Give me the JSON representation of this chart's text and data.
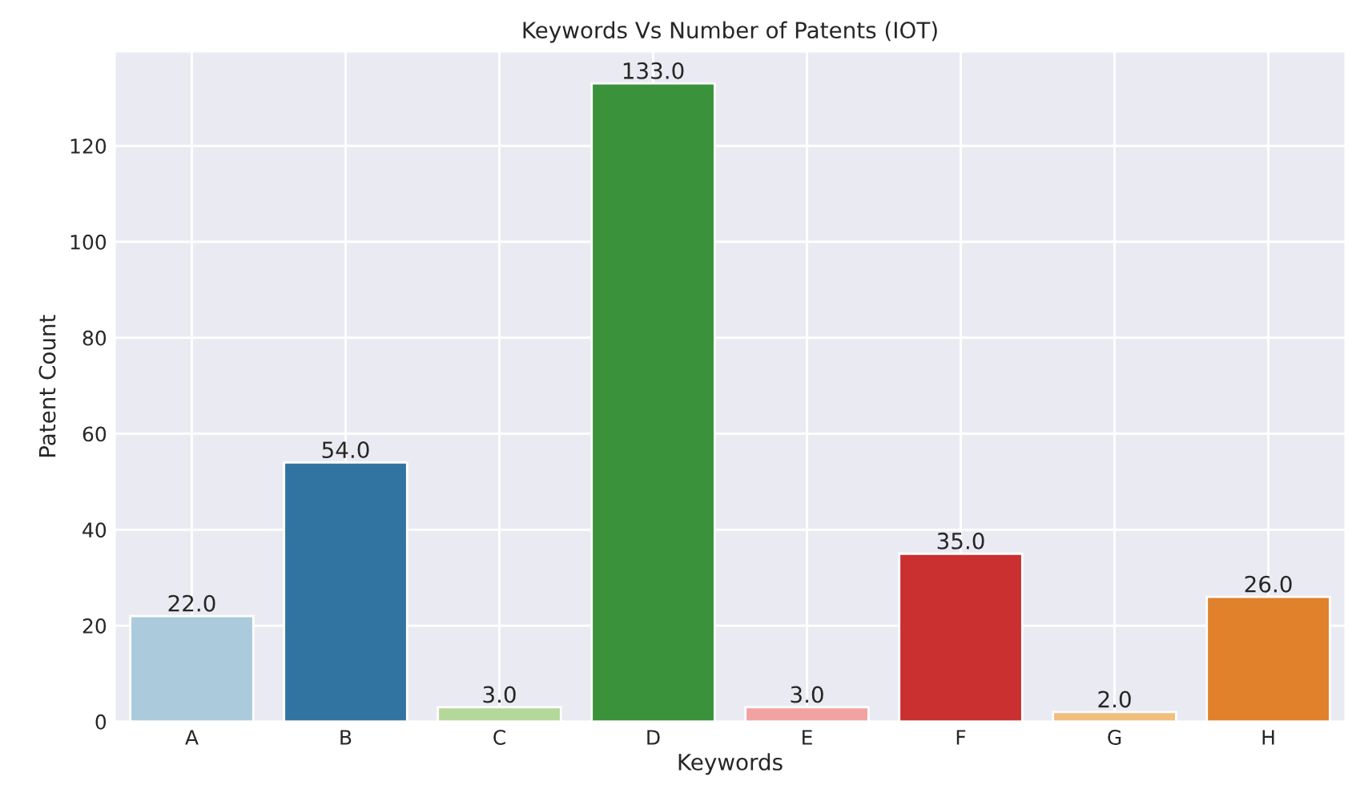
{
  "chart_data": {
    "type": "bar",
    "title": "Keywords Vs Number of Patents (IOT)",
    "xlabel": "Keywords",
    "ylabel": "Patent Count",
    "categories": [
      "A",
      "B",
      "C",
      "D",
      "E",
      "F",
      "G",
      "H"
    ],
    "values": [
      22,
      54,
      3,
      133,
      3,
      35,
      2,
      26
    ],
    "colors": [
      "#abcbdc",
      "#3274a1",
      "#b4d79a",
      "#3a923a",
      "#f1a2a1",
      "#c9302f",
      "#f0be7d",
      "#e1812c"
    ],
    "value_labels": [
      "22.0",
      "54.0",
      "3.0",
      "133.0",
      "3.0",
      "35.0",
      "2.0",
      "26.0"
    ],
    "ylim": [
      0,
      139.65
    ],
    "yticks": [
      0,
      20,
      40,
      60,
      80,
      100,
      120
    ],
    "grid": true
  }
}
